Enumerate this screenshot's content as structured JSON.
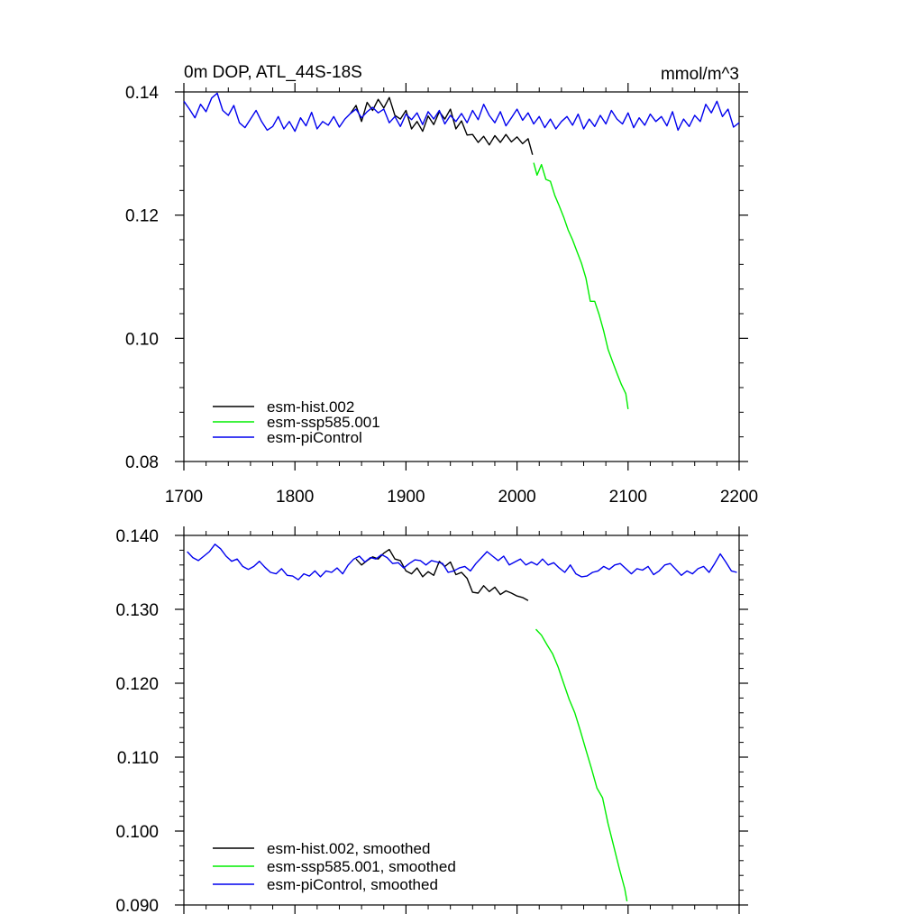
{
  "chart_data": [
    {
      "type": "line",
      "title": "0m DOP, ATL_44S-18S",
      "units": "mmol/m^3",
      "xlabel": "",
      "ylabel": "",
      "xlim": [
        1700,
        2200
      ],
      "ylim": [
        0.08,
        0.14
      ],
      "xticks": [
        1700,
        1800,
        1900,
        2000,
        2100,
        2200
      ],
      "xtick_labels": [
        "1700",
        "1800",
        "1900",
        "2000",
        "2100",
        "2200"
      ],
      "yticks": [
        0.08,
        0.1,
        0.12,
        0.14
      ],
      "ytick_labels": [
        "0.08",
        "0.10",
        "0.12",
        "0.14"
      ],
      "grid": false,
      "legend_position": "bottom-left",
      "series": [
        {
          "name": "esm-hist.002",
          "color": "#000000",
          "x": [
            1850,
            1855,
            1860,
            1865,
            1870,
            1875,
            1880,
            1885,
            1890,
            1895,
            1900,
            1905,
            1910,
            1915,
            1920,
            1925,
            1930,
            1935,
            1940,
            1945,
            1950,
            1955,
            1960,
            1965,
            1970,
            1975,
            1980,
            1985,
            1990,
            1995,
            2000,
            2005,
            2010,
            2014
          ],
          "y": [
            0.1365,
            0.1378,
            0.1352,
            0.1383,
            0.137,
            0.1388,
            0.1374,
            0.1391,
            0.1362,
            0.1356,
            0.137,
            0.134,
            0.1352,
            0.1336,
            0.1361,
            0.1347,
            0.1368,
            0.1356,
            0.1372,
            0.134,
            0.1353,
            0.133,
            0.1331,
            0.1318,
            0.1328,
            0.1314,
            0.1329,
            0.1318,
            0.1331,
            0.1319,
            0.1327,
            0.1316,
            0.1324,
            0.1298
          ]
        },
        {
          "name": "esm-ssp585.001",
          "color": "#00ee00",
          "x": [
            2015,
            2018,
            2022,
            2026,
            2030,
            2034,
            2038,
            2042,
            2046,
            2050,
            2054,
            2058,
            2062,
            2066,
            2070,
            2074,
            2078,
            2082,
            2086,
            2090,
            2094,
            2098,
            2100
          ],
          "y": [
            0.1285,
            0.1265,
            0.1282,
            0.1258,
            0.1255,
            0.1232,
            0.1215,
            0.1197,
            0.1176,
            0.116,
            0.1141,
            0.1122,
            0.1098,
            0.106,
            0.106,
            0.1038,
            0.1012,
            0.0982,
            0.0962,
            0.0943,
            0.0925,
            0.091,
            0.0885
          ]
        },
        {
          "name": "esm-piControl",
          "color": "#0000ee",
          "x": [
            1700,
            1705,
            1710,
            1715,
            1720,
            1725,
            1730,
            1735,
            1740,
            1745,
            1750,
            1755,
            1760,
            1765,
            1770,
            1775,
            1780,
            1785,
            1790,
            1795,
            1800,
            1805,
            1810,
            1815,
            1820,
            1825,
            1830,
            1835,
            1840,
            1845,
            1850,
            1855,
            1860,
            1865,
            1870,
            1875,
            1880,
            1885,
            1890,
            1895,
            1900,
            1905,
            1910,
            1915,
            1920,
            1925,
            1930,
            1935,
            1940,
            1945,
            1950,
            1955,
            1960,
            1965,
            1970,
            1975,
            1980,
            1985,
            1990,
            1995,
            2000,
            2005,
            2010,
            2015,
            2020,
            2025,
            2030,
            2035,
            2040,
            2045,
            2050,
            2055,
            2060,
            2065,
            2070,
            2075,
            2080,
            2085,
            2090,
            2095,
            2100,
            2105,
            2110,
            2115,
            2120,
            2125,
            2130,
            2135,
            2140,
            2145,
            2150,
            2155,
            2160,
            2165,
            2170,
            2175,
            2180,
            2185,
            2190,
            2195,
            2200
          ],
          "y": [
            0.1385,
            0.1372,
            0.1358,
            0.138,
            0.1368,
            0.139,
            0.1398,
            0.137,
            0.1362,
            0.1378,
            0.135,
            0.1342,
            0.1356,
            0.137,
            0.1352,
            0.1338,
            0.1344,
            0.136,
            0.134,
            0.1352,
            0.1336,
            0.1358,
            0.1345,
            0.1367,
            0.134,
            0.1352,
            0.1346,
            0.136,
            0.1343,
            0.1356,
            0.1365,
            0.1372,
            0.1358,
            0.1368,
            0.1375,
            0.1366,
            0.1372,
            0.135,
            0.136,
            0.1344,
            0.1364,
            0.1355,
            0.1366,
            0.1347,
            0.1368,
            0.1356,
            0.137,
            0.1348,
            0.1362,
            0.1352,
            0.1365,
            0.135,
            0.137,
            0.1355,
            0.138,
            0.1362,
            0.135,
            0.1368,
            0.1345,
            0.1358,
            0.1372,
            0.1354,
            0.1366,
            0.1348,
            0.136,
            0.1342,
            0.1356,
            0.134,
            0.1352,
            0.136,
            0.1346,
            0.1364,
            0.134,
            0.1356,
            0.1344,
            0.1362,
            0.1348,
            0.137,
            0.1356,
            0.1348,
            0.1366,
            0.1342,
            0.1358,
            0.1346,
            0.1364,
            0.1352,
            0.136,
            0.1345,
            0.1368,
            0.1338,
            0.1356,
            0.1344,
            0.1362,
            0.1352,
            0.138,
            0.1366,
            0.1385,
            0.136,
            0.1372,
            0.1343,
            0.135
          ]
        }
      ]
    },
    {
      "type": "line",
      "title": "",
      "xlabel": "",
      "ylabel": "",
      "xlim": [
        1700,
        2200
      ],
      "ylim": [
        0.09,
        0.14
      ],
      "yticks": [
        0.09,
        0.1,
        0.11,
        0.12,
        0.13,
        0.14
      ],
      "ytick_labels": [
        "0.090",
        "0.100",
        "0.110",
        "0.120",
        "0.130",
        "0.140"
      ],
      "grid": false,
      "legend_position": "bottom-left",
      "series": [
        {
          "name": "esm-hist.002, smoothed",
          "color": "#000000",
          "x": [
            1855,
            1860,
            1865,
            1870,
            1875,
            1880,
            1885,
            1890,
            1895,
            1900,
            1905,
            1910,
            1915,
            1920,
            1925,
            1930,
            1935,
            1940,
            1945,
            1950,
            1955,
            1960,
            1965,
            1970,
            1975,
            1980,
            1985,
            1990,
            1995,
            2000,
            2005,
            2010
          ],
          "y": [
            0.1368,
            0.136,
            0.1366,
            0.1371,
            0.1368,
            0.1376,
            0.1381,
            0.1368,
            0.1366,
            0.1352,
            0.1348,
            0.1356,
            0.1344,
            0.1351,
            0.1346,
            0.1365,
            0.1358,
            0.1364,
            0.1347,
            0.135,
            0.1342,
            0.1323,
            0.1322,
            0.1332,
            0.1324,
            0.133,
            0.132,
            0.1325,
            0.1322,
            0.1318,
            0.1316,
            0.1312
          ]
        },
        {
          "name": "esm-ssp585.001, smoothed",
          "color": "#00ee00",
          "x": [
            2017,
            2022,
            2027,
            2032,
            2037,
            2042,
            2047,
            2052,
            2057,
            2062,
            2067,
            2072,
            2077,
            2082,
            2087,
            2092,
            2097,
            2099
          ],
          "y": [
            0.1273,
            0.1265,
            0.1252,
            0.124,
            0.1222,
            0.12,
            0.1178,
            0.116,
            0.1136,
            0.111,
            0.1085,
            0.1058,
            0.1045,
            0.101,
            0.098,
            0.095,
            0.0922,
            0.0905
          ]
        },
        {
          "name": "esm-piControl, smoothed",
          "color": "#0000ee",
          "x": [
            1703,
            1708,
            1713,
            1718,
            1723,
            1728,
            1733,
            1738,
            1743,
            1748,
            1753,
            1758,
            1763,
            1768,
            1773,
            1778,
            1783,
            1788,
            1793,
            1798,
            1803,
            1808,
            1813,
            1818,
            1823,
            1828,
            1833,
            1838,
            1843,
            1848,
            1853,
            1858,
            1863,
            1868,
            1873,
            1878,
            1883,
            1888,
            1893,
            1898,
            1903,
            1908,
            1913,
            1918,
            1923,
            1928,
            1933,
            1938,
            1943,
            1948,
            1953,
            1958,
            1963,
            1968,
            1973,
            1978,
            1983,
            1988,
            1993,
            1998,
            2003,
            2008,
            2013,
            2018,
            2023,
            2028,
            2033,
            2038,
            2043,
            2048,
            2053,
            2058,
            2063,
            2068,
            2073,
            2078,
            2083,
            2088,
            2093,
            2098,
            2103,
            2108,
            2113,
            2118,
            2123,
            2128,
            2133,
            2138,
            2143,
            2148,
            2153,
            2158,
            2163,
            2168,
            2173,
            2178,
            2183,
            2188,
            2193,
            2198
          ],
          "y": [
            0.1378,
            0.137,
            0.1366,
            0.1372,
            0.1378,
            0.1388,
            0.1382,
            0.1372,
            0.1365,
            0.1368,
            0.1358,
            0.1354,
            0.1358,
            0.1365,
            0.1357,
            0.135,
            0.1348,
            0.1355,
            0.1346,
            0.1345,
            0.134,
            0.1348,
            0.1345,
            0.1352,
            0.1344,
            0.1352,
            0.135,
            0.1356,
            0.1348,
            0.136,
            0.1368,
            0.1372,
            0.1364,
            0.137,
            0.1368,
            0.1374,
            0.137,
            0.1362,
            0.1363,
            0.1356,
            0.1362,
            0.1367,
            0.1366,
            0.136,
            0.1366,
            0.1364,
            0.1362,
            0.135,
            0.1352,
            0.1356,
            0.1358,
            0.1352,
            0.1362,
            0.137,
            0.1378,
            0.1372,
            0.1366,
            0.1372,
            0.136,
            0.1364,
            0.1368,
            0.136,
            0.1364,
            0.136,
            0.1368,
            0.136,
            0.1363,
            0.1356,
            0.135,
            0.136,
            0.1348,
            0.1344,
            0.1345,
            0.135,
            0.1352,
            0.1358,
            0.1354,
            0.136,
            0.1362,
            0.1355,
            0.1348,
            0.1355,
            0.1353,
            0.1358,
            0.1347,
            0.1352,
            0.136,
            0.1362,
            0.1354,
            0.1346,
            0.1352,
            0.1348,
            0.1355,
            0.1358,
            0.135,
            0.1362,
            0.1375,
            0.1364,
            0.1352,
            0.135
          ]
        }
      ]
    }
  ]
}
